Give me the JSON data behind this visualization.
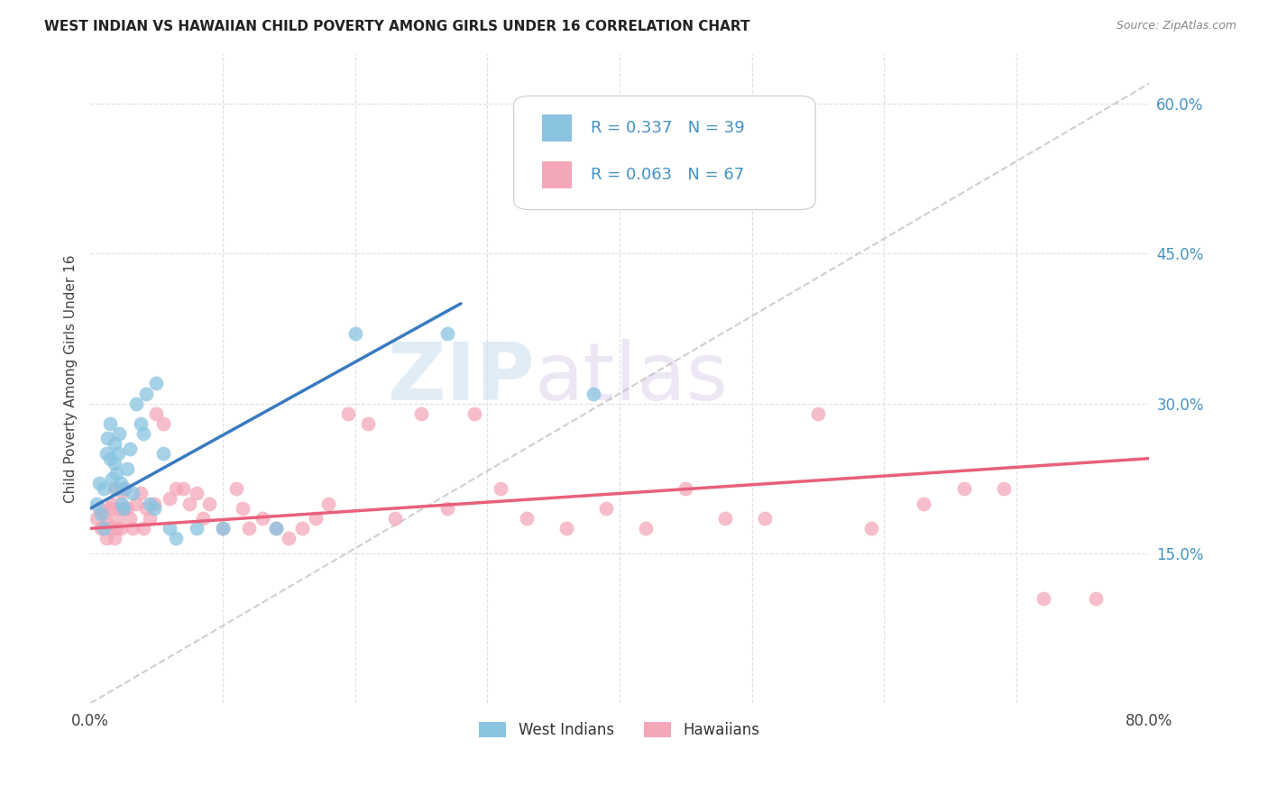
{
  "title": "WEST INDIAN VS HAWAIIAN CHILD POVERTY AMONG GIRLS UNDER 16 CORRELATION CHART",
  "source": "Source: ZipAtlas.com",
  "ylabel": "Child Poverty Among Girls Under 16",
  "y_ticks_right": [
    0.15,
    0.3,
    0.45,
    0.6
  ],
  "y_tick_labels_right": [
    "15.0%",
    "30.0%",
    "45.0%",
    "60.0%"
  ],
  "xlim": [
    0.0,
    0.8
  ],
  "ylim": [
    0.0,
    0.65
  ],
  "legend_r1": "0.337",
  "legend_n1": "39",
  "legend_r2": "0.063",
  "legend_n2": "67",
  "legend_label1": "West Indians",
  "legend_label2": "Hawaiians",
  "color_blue": "#89c4e1",
  "color_pink": "#f4a7b9",
  "color_line_blue": "#3a7abf",
  "color_line_pink": "#e8607a",
  "color_dashed": "#bbbbbb",
  "color_legend_text": "#4393c3",
  "background_color": "#ffffff",
  "grid_color": "#e0e0e0",
  "watermark_zip": "ZIP",
  "watermark_atlas": "atlas",
  "wi_x": [
    0.005,
    0.007,
    0.008,
    0.01,
    0.01,
    0.012,
    0.013,
    0.015,
    0.015,
    0.016,
    0.018,
    0.018,
    0.02,
    0.02,
    0.021,
    0.022,
    0.023,
    0.024,
    0.025,
    0.026,
    0.028,
    0.03,
    0.032,
    0.035,
    0.038,
    0.04,
    0.042,
    0.045,
    0.048,
    0.05,
    0.055,
    0.06,
    0.065,
    0.08,
    0.1,
    0.14,
    0.2,
    0.27,
    0.38
  ],
  "wi_y": [
    0.2,
    0.22,
    0.19,
    0.175,
    0.215,
    0.25,
    0.265,
    0.28,
    0.245,
    0.225,
    0.26,
    0.24,
    0.215,
    0.23,
    0.25,
    0.27,
    0.22,
    0.2,
    0.195,
    0.215,
    0.235,
    0.255,
    0.21,
    0.3,
    0.28,
    0.27,
    0.31,
    0.2,
    0.195,
    0.32,
    0.25,
    0.175,
    0.165,
    0.175,
    0.175,
    0.175,
    0.37,
    0.37,
    0.31
  ],
  "hw_x": [
    0.005,
    0.007,
    0.008,
    0.01,
    0.012,
    0.013,
    0.015,
    0.015,
    0.016,
    0.018,
    0.018,
    0.02,
    0.02,
    0.022,
    0.023,
    0.024,
    0.025,
    0.026,
    0.028,
    0.03,
    0.032,
    0.035,
    0.038,
    0.04,
    0.042,
    0.045,
    0.048,
    0.05,
    0.055,
    0.06,
    0.065,
    0.07,
    0.075,
    0.08,
    0.085,
    0.09,
    0.1,
    0.11,
    0.115,
    0.12,
    0.13,
    0.14,
    0.15,
    0.16,
    0.17,
    0.18,
    0.195,
    0.21,
    0.23,
    0.25,
    0.27,
    0.29,
    0.31,
    0.33,
    0.36,
    0.39,
    0.42,
    0.45,
    0.48,
    0.51,
    0.55,
    0.59,
    0.63,
    0.66,
    0.69,
    0.72,
    0.76
  ],
  "hw_y": [
    0.185,
    0.195,
    0.175,
    0.19,
    0.165,
    0.18,
    0.195,
    0.175,
    0.2,
    0.215,
    0.165,
    0.175,
    0.185,
    0.195,
    0.175,
    0.21,
    0.195,
    0.215,
    0.195,
    0.185,
    0.175,
    0.2,
    0.21,
    0.175,
    0.195,
    0.185,
    0.2,
    0.29,
    0.28,
    0.205,
    0.215,
    0.215,
    0.2,
    0.21,
    0.185,
    0.2,
    0.175,
    0.215,
    0.195,
    0.175,
    0.185,
    0.175,
    0.165,
    0.175,
    0.185,
    0.2,
    0.29,
    0.28,
    0.185,
    0.29,
    0.195,
    0.29,
    0.215,
    0.185,
    0.175,
    0.195,
    0.175,
    0.215,
    0.185,
    0.185,
    0.29,
    0.175,
    0.2,
    0.215,
    0.215,
    0.105,
    0.105
  ],
  "blue_line_x": [
    0.0,
    0.28
  ],
  "blue_line_y": [
    0.195,
    0.4
  ],
  "pink_line_x": [
    0.0,
    0.8
  ],
  "pink_line_y": [
    0.175,
    0.245
  ]
}
